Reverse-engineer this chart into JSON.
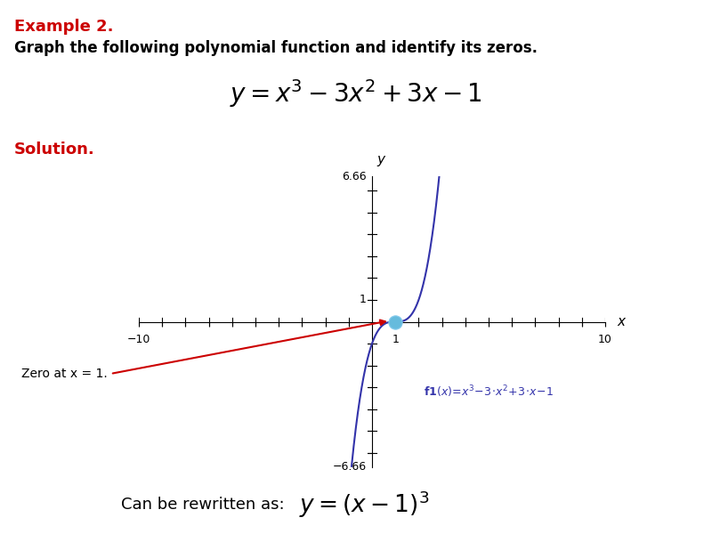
{
  "title_example": "Example 2.",
  "title_problem": "Graph the following polynomial function and identify its zeros.",
  "solution_label": "Solution.",
  "bottom_text": "Can be rewritten as:",
  "xlim": [
    -10,
    10
  ],
  "ylim": [
    -6.66,
    6.66
  ],
  "xtick_vals": [
    -10,
    -9,
    -8,
    -7,
    -6,
    -5,
    -4,
    -3,
    -2,
    -1,
    1,
    2,
    3,
    4,
    5,
    6,
    7,
    8,
    9,
    10
  ],
  "ytick_vals": [
    -6,
    -5,
    -4,
    -3,
    -2,
    -1,
    1,
    2,
    3,
    4,
    5,
    6
  ],
  "zero_label": "Zero at x = 1.",
  "curve_color": "#3333aa",
  "dot_color": "#66bbdd",
  "arrow_color": "#cc0000",
  "header_bar_color": "#44aacc",
  "example_color": "#cc0000",
  "solution_color": "#cc0000",
  "bg_color": "#ffffff",
  "fig_width": 8.0,
  "fig_height": 6.0
}
